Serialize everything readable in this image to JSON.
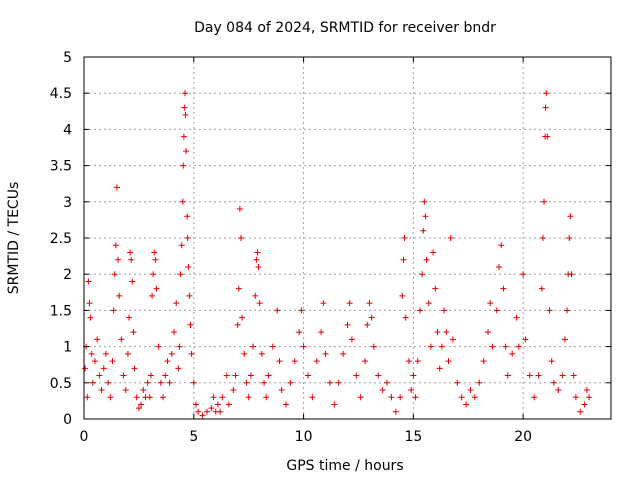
{
  "chart_data": {
    "type": "scatter",
    "title": "Day 084 of 2024, SRMTID for receiver bndr",
    "xlabel": "GPS time / hours",
    "ylabel": "SRMTID / TECUs",
    "xlim": [
      0,
      24
    ],
    "ylim": [
      0,
      5
    ],
    "xticks": [
      0,
      5,
      10,
      15,
      20
    ],
    "xtick_labels": [
      "0",
      "5",
      "10",
      "15",
      "20"
    ],
    "yticks": [
      0,
      0.5,
      1,
      1.5,
      2,
      2.5,
      3,
      3.5,
      4,
      4.5,
      5
    ],
    "ytick_labels": [
      "0",
      "0.5",
      "1",
      "1.5",
      "2",
      "2.5",
      "3",
      "3.5",
      "4",
      "4.5",
      "5"
    ],
    "grid": true,
    "marker": "+",
    "color": "#e00000",
    "series": [
      {
        "name": "SRMTID",
        "points": [
          [
            0.05,
            0.7
          ],
          [
            0.1,
            1.0
          ],
          [
            0.15,
            0.3
          ],
          [
            0.2,
            1.9
          ],
          [
            0.25,
            1.6
          ],
          [
            0.3,
            1.4
          ],
          [
            0.35,
            0.9
          ],
          [
            0.4,
            0.5
          ],
          [
            0.5,
            0.8
          ],
          [
            0.6,
            1.1
          ],
          [
            0.7,
            0.6
          ],
          [
            0.8,
            0.4
          ],
          [
            0.9,
            0.7
          ],
          [
            1.0,
            0.9
          ],
          [
            1.1,
            0.5
          ],
          [
            1.2,
            0.3
          ],
          [
            1.3,
            0.8
          ],
          [
            1.35,
            1.5
          ],
          [
            1.4,
            2.0
          ],
          [
            1.45,
            2.4
          ],
          [
            1.5,
            3.2
          ],
          [
            1.55,
            2.2
          ],
          [
            1.6,
            1.7
          ],
          [
            1.7,
            1.1
          ],
          [
            1.8,
            0.6
          ],
          [
            1.9,
            0.4
          ],
          [
            2.0,
            0.9
          ],
          [
            2.05,
            1.4
          ],
          [
            2.1,
            2.3
          ],
          [
            2.15,
            2.2
          ],
          [
            2.2,
            1.9
          ],
          [
            2.25,
            1.2
          ],
          [
            2.3,
            0.7
          ],
          [
            2.4,
            0.3
          ],
          [
            2.5,
            0.15
          ],
          [
            2.6,
            0.2
          ],
          [
            2.7,
            0.4
          ],
          [
            2.8,
            0.3
          ],
          [
            2.9,
            0.5
          ],
          [
            3.0,
            0.3
          ],
          [
            3.05,
            0.6
          ],
          [
            3.1,
            1.7
          ],
          [
            3.15,
            2.0
          ],
          [
            3.2,
            2.3
          ],
          [
            3.25,
            2.2
          ],
          [
            3.3,
            1.8
          ],
          [
            3.4,
            1.0
          ],
          [
            3.5,
            0.5
          ],
          [
            3.6,
            0.3
          ],
          [
            3.7,
            0.6
          ],
          [
            3.8,
            0.8
          ],
          [
            3.9,
            0.5
          ],
          [
            4.0,
            0.9
          ],
          [
            4.1,
            1.2
          ],
          [
            4.2,
            1.6
          ],
          [
            4.3,
            0.7
          ],
          [
            4.35,
            1.0
          ],
          [
            4.4,
            2.0
          ],
          [
            4.45,
            2.4
          ],
          [
            4.5,
            3.0
          ],
          [
            4.52,
            3.5
          ],
          [
            4.55,
            3.9
          ],
          [
            4.57,
            4.3
          ],
          [
            4.6,
            4.5
          ],
          [
            4.62,
            4.2
          ],
          [
            4.65,
            3.7
          ],
          [
            4.7,
            2.8
          ],
          [
            4.72,
            2.5
          ],
          [
            4.75,
            2.1
          ],
          [
            4.8,
            1.7
          ],
          [
            4.85,
            1.3
          ],
          [
            4.9,
            0.9
          ],
          [
            5.0,
            0.5
          ],
          [
            5.1,
            0.2
          ],
          [
            5.2,
            0.1
          ],
          [
            5.4,
            0.05
          ],
          [
            5.6,
            0.1
          ],
          [
            5.8,
            0.15
          ],
          [
            5.9,
            0.3
          ],
          [
            6.0,
            0.1
          ],
          [
            6.1,
            0.2
          ],
          [
            6.2,
            0.1
          ],
          [
            6.3,
            0.3
          ],
          [
            6.5,
            0.6
          ],
          [
            6.6,
            0.2
          ],
          [
            6.8,
            0.4
          ],
          [
            6.9,
            0.6
          ],
          [
            7.0,
            1.3
          ],
          [
            7.05,
            1.8
          ],
          [
            7.1,
            2.9
          ],
          [
            7.15,
            2.5
          ],
          [
            7.2,
            1.4
          ],
          [
            7.3,
            0.9
          ],
          [
            7.4,
            0.5
          ],
          [
            7.5,
            0.3
          ],
          [
            7.6,
            0.6
          ],
          [
            7.7,
            1.0
          ],
          [
            7.8,
            1.7
          ],
          [
            7.85,
            2.2
          ],
          [
            7.9,
            2.3
          ],
          [
            7.95,
            2.1
          ],
          [
            8.0,
            1.6
          ],
          [
            8.1,
            0.9
          ],
          [
            8.2,
            0.5
          ],
          [
            8.3,
            0.3
          ],
          [
            8.4,
            0.6
          ],
          [
            8.6,
            1.0
          ],
          [
            8.8,
            1.5
          ],
          [
            8.9,
            0.8
          ],
          [
            9.0,
            0.4
          ],
          [
            9.2,
            0.2
          ],
          [
            9.4,
            0.5
          ],
          [
            9.6,
            0.8
          ],
          [
            9.8,
            1.2
          ],
          [
            9.9,
            1.5
          ],
          [
            10.0,
            1.0
          ],
          [
            10.2,
            0.6
          ],
          [
            10.4,
            0.3
          ],
          [
            10.6,
            0.8
          ],
          [
            10.8,
            1.2
          ],
          [
            10.9,
            1.6
          ],
          [
            11.0,
            0.9
          ],
          [
            11.2,
            0.5
          ],
          [
            11.4,
            0.2
          ],
          [
            11.6,
            0.5
          ],
          [
            11.8,
            0.9
          ],
          [
            12.0,
            1.3
          ],
          [
            12.1,
            1.6
          ],
          [
            12.2,
            1.1
          ],
          [
            12.4,
            0.6
          ],
          [
            12.6,
            0.3
          ],
          [
            12.8,
            0.8
          ],
          [
            12.9,
            1.3
          ],
          [
            13.0,
            1.6
          ],
          [
            13.1,
            1.4
          ],
          [
            13.2,
            1.0
          ],
          [
            13.4,
            0.6
          ],
          [
            13.6,
            0.4
          ],
          [
            13.8,
            0.5
          ],
          [
            14.0,
            0.3
          ],
          [
            14.2,
            0.1
          ],
          [
            14.4,
            0.3
          ],
          [
            14.5,
            1.7
          ],
          [
            14.55,
            2.2
          ],
          [
            14.6,
            2.5
          ],
          [
            14.65,
            1.4
          ],
          [
            14.8,
            0.8
          ],
          [
            14.9,
            0.4
          ],
          [
            15.0,
            0.6
          ],
          [
            15.1,
            0.3
          ],
          [
            15.2,
            0.8
          ],
          [
            15.3,
            1.5
          ],
          [
            15.4,
            2.0
          ],
          [
            15.45,
            2.6
          ],
          [
            15.5,
            3.0
          ],
          [
            15.55,
            2.8
          ],
          [
            15.6,
            2.2
          ],
          [
            15.7,
            1.6
          ],
          [
            15.8,
            1.0
          ],
          [
            15.9,
            2.3
          ],
          [
            16.0,
            1.8
          ],
          [
            16.1,
            1.2
          ],
          [
            16.2,
            0.7
          ],
          [
            16.3,
            1.0
          ],
          [
            16.4,
            1.5
          ],
          [
            16.5,
            1.2
          ],
          [
            16.6,
            0.8
          ],
          [
            16.7,
            2.5
          ],
          [
            16.8,
            1.1
          ],
          [
            17.0,
            0.5
          ],
          [
            17.2,
            0.3
          ],
          [
            17.4,
            0.2
          ],
          [
            17.6,
            0.4
          ],
          [
            17.8,
            0.3
          ],
          [
            18.0,
            0.5
          ],
          [
            18.2,
            0.8
          ],
          [
            18.4,
            1.2
          ],
          [
            18.5,
            1.6
          ],
          [
            18.6,
            1.0
          ],
          [
            18.8,
            1.5
          ],
          [
            18.9,
            2.1
          ],
          [
            19.0,
            2.4
          ],
          [
            19.1,
            1.8
          ],
          [
            19.2,
            1.0
          ],
          [
            19.3,
            0.6
          ],
          [
            19.5,
            0.9
          ],
          [
            19.7,
            1.4
          ],
          [
            19.8,
            1.0
          ],
          [
            20.0,
            2.0
          ],
          [
            20.1,
            1.1
          ],
          [
            20.3,
            0.6
          ],
          [
            20.5,
            0.3
          ],
          [
            20.7,
            0.6
          ],
          [
            20.85,
            1.8
          ],
          [
            20.9,
            2.5
          ],
          [
            20.95,
            3.0
          ],
          [
            21.0,
            3.9
          ],
          [
            21.02,
            4.3
          ],
          [
            21.05,
            4.5
          ],
          [
            21.1,
            3.9
          ],
          [
            21.2,
            1.5
          ],
          [
            21.3,
            0.8
          ],
          [
            21.4,
            0.5
          ],
          [
            21.6,
            0.4
          ],
          [
            21.8,
            0.6
          ],
          [
            21.9,
            1.1
          ],
          [
            22.0,
            1.5
          ],
          [
            22.05,
            2.0
          ],
          [
            22.1,
            2.5
          ],
          [
            22.15,
            2.8
          ],
          [
            22.2,
            2.0
          ],
          [
            22.3,
            0.6
          ],
          [
            22.4,
            0.3
          ],
          [
            22.6,
            0.1
          ],
          [
            22.8,
            0.2
          ],
          [
            22.9,
            0.4
          ],
          [
            23.0,
            0.3
          ]
        ]
      }
    ]
  }
}
